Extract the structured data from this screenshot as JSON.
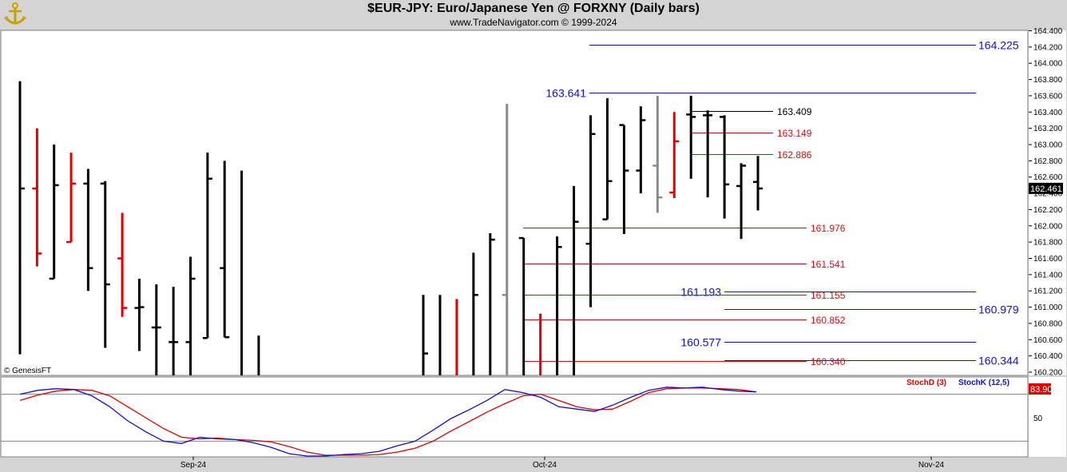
{
  "header": {
    "title": "$EUR-JPY:  Euro/Japanese Yen @ FORXNY  (Daily bars)",
    "subtitle": "www.TradeNavigator.com © 1999-2024"
  },
  "watermark": "© GenesisFT",
  "logo_icon": "anchor-icon",
  "colors": {
    "up_bar": "#000000",
    "down_bar": "#e00000",
    "neutral_bar": "#8a8a8a",
    "fib_red": "#d01010",
    "level_blue": "#1010d0",
    "stoch_d": "#e00000",
    "stoch_k": "#1010d0"
  },
  "chart_data": [
    {
      "type": "ohlc",
      "title": "$EUR-JPY:  Euro/Japanese Yen @ FORXNY  (Daily bars)",
      "ylim": [
        160.1,
        164.5
      ],
      "y_ticks": [
        "164.400",
        "164.200",
        "164.000",
        "163.800",
        "163.600",
        "163.400",
        "163.200",
        "163.000",
        "162.800",
        "162.600",
        "162.400",
        "162.200",
        "162.000",
        "161.800",
        "161.600",
        "161.400",
        "161.200",
        "161.000",
        "160.800",
        "160.600",
        "160.400",
        "160.200"
      ],
      "last_price": "162.461",
      "x_labels": [
        "Sep-24",
        "Oct-24",
        "Nov-24"
      ],
      "bars": [
        {
          "i": 0,
          "o": null,
          "h": 163.78,
          "l": 160.42,
          "c": 162.46,
          "d": "up"
        },
        {
          "i": 1,
          "o": 162.46,
          "h": 163.2,
          "l": 161.5,
          "c": 161.66,
          "d": "down"
        },
        {
          "i": 2,
          "o": 161.35,
          "h": 163.0,
          "l": 161.35,
          "c": 162.5,
          "d": "up"
        },
        {
          "i": 3,
          "o": 161.8,
          "h": 162.9,
          "l": 161.8,
          "c": 162.52,
          "d": "down"
        },
        {
          "i": 4,
          "o": 162.52,
          "h": 162.7,
          "l": 161.2,
          "c": 161.48,
          "d": "up"
        },
        {
          "i": 5,
          "o": 162.52,
          "h": 162.55,
          "l": 160.5,
          "c": 161.28,
          "d": "up"
        },
        {
          "i": 6,
          "o": 161.6,
          "h": 162.16,
          "l": 160.88,
          "c": 160.99,
          "d": "down"
        },
        {
          "i": 7,
          "o": 160.99,
          "h": 161.35,
          "l": 160.46,
          "c": 161.0,
          "d": "up"
        },
        {
          "i": 8,
          "o": 160.75,
          "h": 161.28,
          "l": 160.0,
          "c": 160.75,
          "d": "up"
        },
        {
          "i": 9,
          "o": 160.57,
          "h": 161.25,
          "l": 160.0,
          "c": 160.57,
          "d": "up"
        },
        {
          "i": 10,
          "o": 160.57,
          "h": 161.62,
          "l": 160.0,
          "c": 161.35,
          "d": "up"
        },
        {
          "i": 11,
          "o": 160.62,
          "h": 162.9,
          "l": 160.62,
          "c": 162.58,
          "d": "up"
        },
        {
          "i": 12,
          "o": 161.48,
          "h": 162.8,
          "l": 160.63,
          "c": 160.63,
          "d": "up"
        },
        {
          "i": 13,
          "o": null,
          "h": 162.68,
          "l": 160.0,
          "c": null,
          "d": "up"
        },
        {
          "i": 14,
          "o": null,
          "h": 160.65,
          "l": 160.0,
          "c": null,
          "d": "up"
        },
        {
          "i": 15,
          "o": null,
          "h": 161.15,
          "l": 160.0,
          "c": 160.43,
          "d": "up"
        },
        {
          "i": 16,
          "o": null,
          "h": 161.15,
          "l": 160.0,
          "c": null,
          "d": "up"
        },
        {
          "i": 17,
          "o": null,
          "h": 161.1,
          "l": 160.0,
          "c": null,
          "d": "down"
        },
        {
          "i": 18,
          "o": null,
          "h": 161.67,
          "l": 160.0,
          "c": 161.15,
          "d": "up"
        },
        {
          "i": 19,
          "o": null,
          "h": 161.91,
          "l": 160.0,
          "c": 161.83,
          "d": "up"
        },
        {
          "i": 20,
          "o": 161.15,
          "h": 163.5,
          "l": 160.0,
          "c": null,
          "d": "neutral"
        },
        {
          "i": 21,
          "o": 161.85,
          "h": 161.85,
          "l": 160.0,
          "c": null,
          "d": "up"
        },
        {
          "i": 22,
          "o": null,
          "h": 160.92,
          "l": 160.0,
          "c": null,
          "d": "down"
        },
        {
          "i": 23,
          "o": null,
          "h": 161.87,
          "l": 160.0,
          "c": 161.74,
          "d": "up"
        },
        {
          "i": 24,
          "o": null,
          "h": 162.49,
          "l": 160.0,
          "c": 162.05,
          "d": "up"
        },
        {
          "i": 25,
          "o": 161.78,
          "h": 163.36,
          "l": 161.0,
          "c": 163.13,
          "d": "up"
        },
        {
          "i": 26,
          "o": 162.08,
          "h": 163.57,
          "l": 162.08,
          "c": 162.55,
          "d": "up"
        },
        {
          "i": 27,
          "o": 163.24,
          "h": 163.24,
          "l": 161.9,
          "c": 162.68,
          "d": "up"
        },
        {
          "i": 28,
          "o": 162.68,
          "h": 163.47,
          "l": 162.4,
          "c": 163.3,
          "d": "up"
        },
        {
          "i": 29,
          "o": 162.74,
          "h": 163.6,
          "l": 162.16,
          "c": 162.35,
          "d": "neutral"
        },
        {
          "i": 30,
          "o": 162.41,
          "h": 163.4,
          "l": 162.34,
          "c": 163.04,
          "d": "down"
        },
        {
          "i": 31,
          "o": 163.37,
          "h": 163.6,
          "l": 162.58,
          "c": 163.34,
          "d": "up"
        },
        {
          "i": 32,
          "o": 163.36,
          "h": 163.42,
          "l": 162.35,
          "c": 163.36,
          "d": "up"
        },
        {
          "i": 33,
          "o": 163.34,
          "h": 163.36,
          "l": 162.09,
          "c": 162.51,
          "d": "up"
        },
        {
          "i": 34,
          "o": 162.49,
          "h": 162.77,
          "l": 161.84,
          "c": 162.74,
          "d": "up"
        },
        {
          "i": 35,
          "o": 162.54,
          "h": 162.86,
          "l": 162.19,
          "c": 162.46,
          "d": "up"
        }
      ],
      "levels": [
        {
          "label": "164.225",
          "value": 164.225,
          "color": "blue",
          "label_side": "right"
        },
        {
          "label": "163.641",
          "value": 163.641,
          "color": "blue",
          "label_side": "left"
        },
        {
          "label": "163.409",
          "value": 163.409,
          "color": "black",
          "label_side": "right"
        },
        {
          "label": "163.149",
          "value": 163.149,
          "color": "red",
          "label_side": "right"
        },
        {
          "label": "162.886",
          "value": 162.886,
          "color": "red",
          "label_side": "right"
        },
        {
          "label": "161.976",
          "value": 161.976,
          "color": "red",
          "label_side": "right"
        },
        {
          "label": "161.541",
          "value": 161.541,
          "color": "red",
          "label_side": "right"
        },
        {
          "label": "161.193",
          "value": 161.193,
          "color": "blue",
          "label_side": "left"
        },
        {
          "label": "161.155",
          "value": 161.155,
          "color": "red",
          "label_side": "right"
        },
        {
          "label": "160.979",
          "value": 160.979,
          "color": "blue",
          "label_side": "right"
        },
        {
          "label": "160.852",
          "value": 160.852,
          "color": "red",
          "label_side": "right"
        },
        {
          "label": "160.577",
          "value": 160.577,
          "color": "blue",
          "label_side": "left"
        },
        {
          "label": "160.344",
          "value": 160.344,
          "color": "blue",
          "label_side": "right"
        },
        {
          "label": "160.340",
          "value": 160.34,
          "color": "red",
          "label_side": "right"
        }
      ]
    },
    {
      "type": "line",
      "legend": [
        "StochD (3)",
        "StochK (12,5)"
      ],
      "last_value": "83.90",
      "y_tick": "50",
      "ylim": [
        0,
        100
      ],
      "series": [
        {
          "name": "StochD (3)",
          "values": [
            72,
            79,
            84,
            86,
            85,
            78,
            64,
            50,
            36,
            25,
            23,
            24,
            22,
            21,
            19,
            13,
            6,
            2,
            2,
            2,
            3,
            6,
            11,
            20,
            33,
            45,
            57,
            68,
            78,
            80,
            72,
            64,
            60,
            61,
            71,
            82,
            87,
            88,
            88,
            87,
            86,
            83
          ]
        },
        {
          "name": "StochK (12,5)",
          "values": [
            80,
            85,
            87,
            86,
            78,
            64,
            46,
            32,
            20,
            17,
            25,
            23,
            22,
            18,
            12,
            4,
            1,
            1,
            3,
            4,
            7,
            14,
            20,
            34,
            49,
            60,
            72,
            86,
            82,
            76,
            64,
            61,
            58,
            66,
            76,
            85,
            89,
            88,
            89,
            86,
            84,
            83
          ]
        }
      ]
    }
  ]
}
